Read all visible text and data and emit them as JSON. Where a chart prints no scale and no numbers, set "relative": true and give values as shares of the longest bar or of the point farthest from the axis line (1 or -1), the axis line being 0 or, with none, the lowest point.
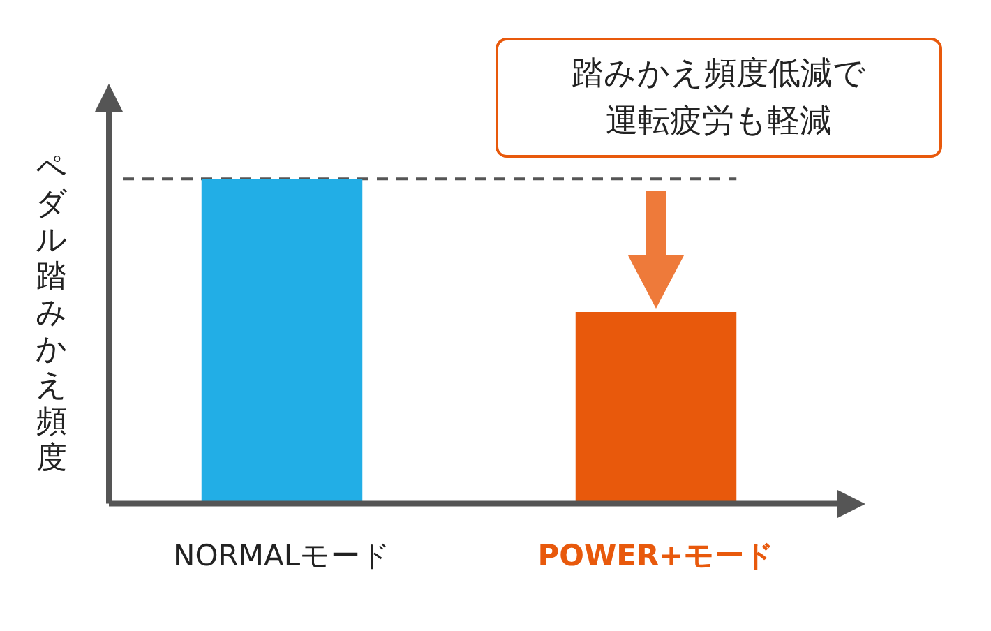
{
  "chart_data": {
    "type": "bar",
    "relative": true,
    "ylabel": "ペダル踏みかえ頻度",
    "categories": [
      "NORMALモード",
      "POWER+モード"
    ],
    "values": [
      1,
      0.59
    ],
    "colors": [
      "#22aee6",
      "#e8590c"
    ],
    "ref_lines": [
      {
        "axis": "y",
        "value": 1,
        "line_style": "dashed",
        "color": "#555555"
      }
    ],
    "annotations": [
      "踏みかえ頻度低減で運転疲労も軽減"
    ],
    "grid": false,
    "legend": false
  }
}
